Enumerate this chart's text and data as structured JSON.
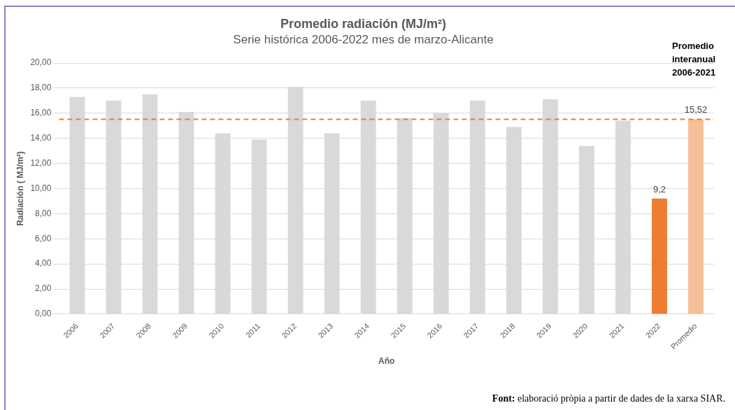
{
  "chart_data": {
    "type": "bar",
    "title": "Promedio radiación (MJ/m²)",
    "subtitle": "Serie histórica 2006-2022 mes de marzo-Alicante",
    "xlabel": "Año",
    "ylabel": "Radiación ( MJ/m²)",
    "categories": [
      "2006",
      "2007",
      "2008",
      "2009",
      "2010",
      "2011",
      "2012",
      "2013",
      "2014",
      "2015",
      "2016",
      "2017",
      "2018",
      "2019",
      "2020",
      "2021",
      "2022",
      "Promedio"
    ],
    "values": [
      17.3,
      17.0,
      17.5,
      16.1,
      14.4,
      13.9,
      18.1,
      14.4,
      17.0,
      15.6,
      16.0,
      17.0,
      14.9,
      17.1,
      13.4,
      15.4,
      9.2,
      15.52
    ],
    "colors": [
      "#d9d9d9",
      "#d9d9d9",
      "#d9d9d9",
      "#d9d9d9",
      "#d9d9d9",
      "#d9d9d9",
      "#d9d9d9",
      "#d9d9d9",
      "#d9d9d9",
      "#d9d9d9",
      "#d9d9d9",
      "#d9d9d9",
      "#d9d9d9",
      "#d9d9d9",
      "#d9d9d9",
      "#d9d9d9",
      "#ed7d31",
      "#f5bf97"
    ],
    "value_labels": [
      null,
      null,
      null,
      null,
      null,
      null,
      null,
      null,
      null,
      null,
      null,
      null,
      null,
      null,
      null,
      null,
      "9,2",
      "15,52"
    ],
    "ylim": [
      0,
      20
    ],
    "yticks": [
      {
        "value": 0,
        "label": "0,00"
      },
      {
        "value": 2,
        "label": "2,00"
      },
      {
        "value": 4,
        "label": "4,00"
      },
      {
        "value": 6,
        "label": "6,00"
      },
      {
        "value": 8,
        "label": "8,00"
      },
      {
        "value": 10,
        "label": "10,00"
      },
      {
        "value": 12,
        "label": "12,00"
      },
      {
        "value": 14,
        "label": "14,00"
      },
      {
        "value": 16,
        "label": "16,00"
      },
      {
        "value": 18,
        "label": "18,00"
      },
      {
        "value": 20,
        "label": "20,00"
      }
    ],
    "grid": "y",
    "ref_lines": [
      {
        "axis": "y",
        "value": 15.52,
        "color": "#ed7d31",
        "line_style": "dashed"
      }
    ],
    "annotations": [
      "Promedio interanual 2006-2021",
      "Font: elaboració pròpia a partir de dades de la xarxa SIAR."
    ]
  }
}
